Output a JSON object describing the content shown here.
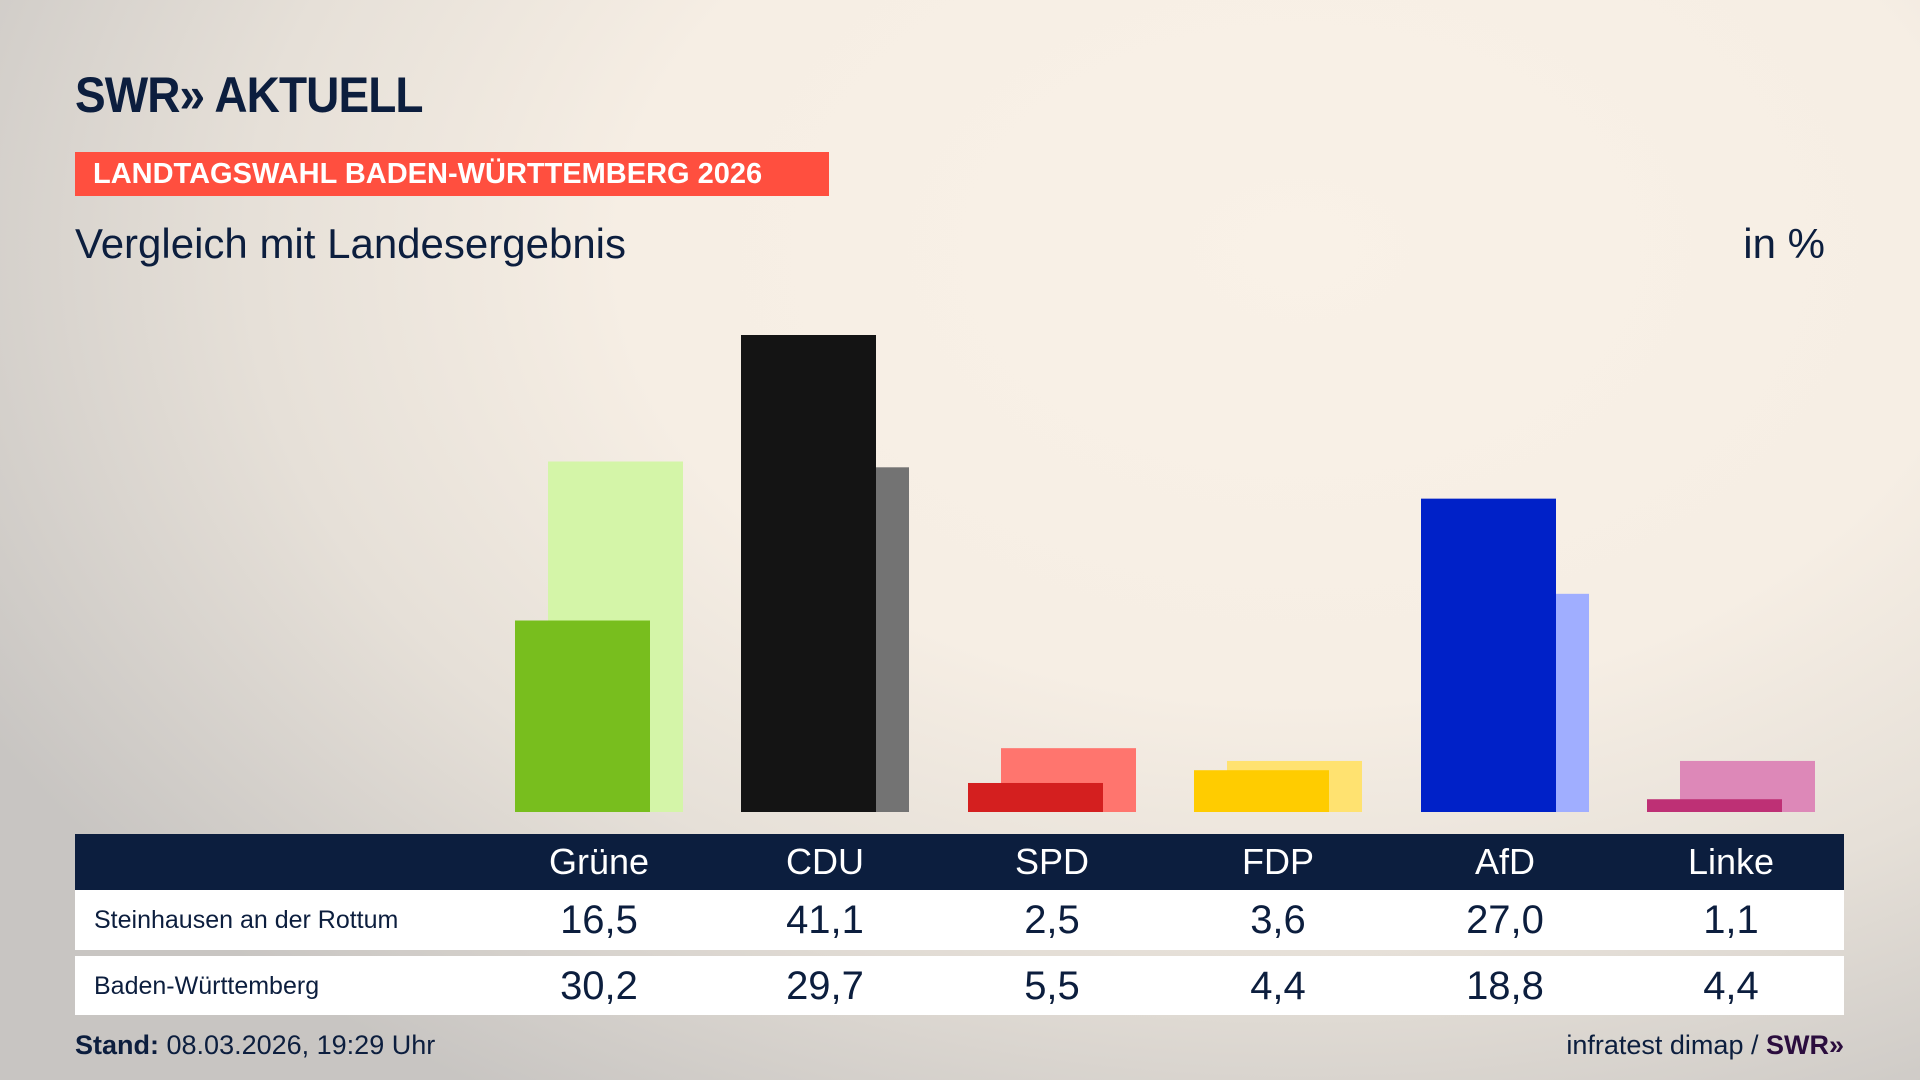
{
  "header": {
    "logo": "SWR» AKTUELL",
    "banner": "LANDTAGSWAHL BADEN-WÜRTTEMBERG 2026",
    "subtitle": "Vergleich mit Landesergebnis",
    "unit": "in %"
  },
  "colors": {
    "navy": "#0c1e3e",
    "banner": "#ff4f3f"
  },
  "chart_data": {
    "type": "bar",
    "categories": [
      "Grüne",
      "CDU",
      "SPD",
      "FDP",
      "AfD",
      "Linke"
    ],
    "series": [
      {
        "name": "Steinhausen an der Rottum",
        "values": [
          16.5,
          41.1,
          2.5,
          3.6,
          27.0,
          1.1
        ],
        "colors": [
          "#78be1e",
          "#141414",
          "#d41f1f",
          "#ffcc00",
          "#0021c8",
          "#be3075"
        ]
      },
      {
        "name": "Baden-Württemberg",
        "values": [
          30.2,
          29.7,
          5.5,
          4.4,
          18.8,
          4.4
        ],
        "colors": [
          "#d4f5a8",
          "#737373",
          "#ff756e",
          "#ffe270",
          "#a0aeff",
          "#dd88b8"
        ]
      }
    ],
    "ylim": [
      0,
      41.1
    ],
    "grid": false
  },
  "table": {
    "headers": [
      "Grüne",
      "CDU",
      "SPD",
      "FDP",
      "AfD",
      "Linke"
    ],
    "rows": [
      {
        "label": "Steinhausen an der Rottum",
        "values": [
          "16,5",
          "41,1",
          "2,5",
          "3,6",
          "27,0",
          "1,1"
        ]
      },
      {
        "label": "Baden-Württemberg",
        "values": [
          "30,2",
          "29,7",
          "5,5",
          "4,4",
          "18,8",
          "4,4"
        ]
      }
    ]
  },
  "footer": {
    "stand_label": "Stand:",
    "stand_value": "08.03.2026, 19:29 Uhr",
    "source": "infratest dimap /",
    "source_logo": "SWR»"
  }
}
